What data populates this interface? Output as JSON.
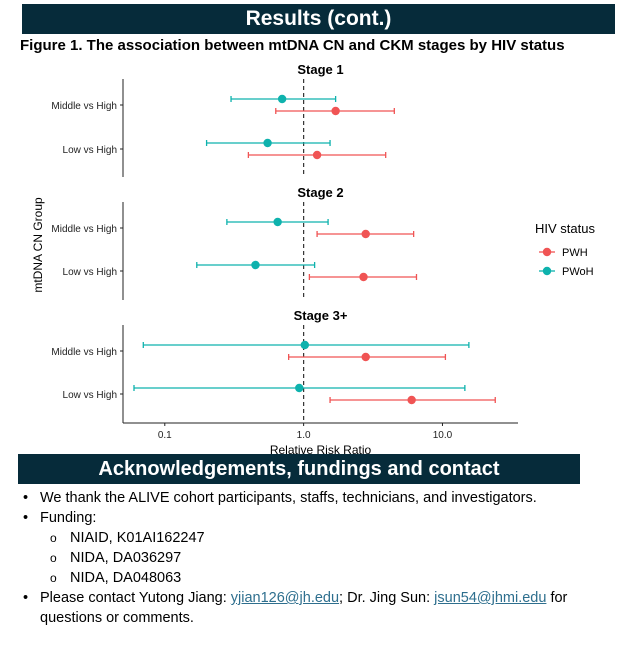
{
  "header": {
    "results_title": "Results (cont.)",
    "ack_title": "Acknowledgements, fundings and contact"
  },
  "figure_title": "Figure 1. The association between mtDNA CN and CKM stages by HIV status",
  "chart_data": {
    "type": "forest",
    "xscale": "log",
    "xlim": [
      0.05,
      35
    ],
    "xticks": [
      0.1,
      1.0,
      10.0
    ],
    "xtick_labels": [
      "0.1",
      "1.0",
      "10.0"
    ],
    "reference_line": 1.0,
    "xlabel": "Relative Risk Ratio",
    "ylabel": "mtDNA CN Group",
    "categories": [
      "Middle vs High",
      "Low vs High"
    ],
    "legend": {
      "title": "HIV status",
      "position": "right"
    },
    "series_colors": {
      "PWH": "#f05454",
      "PWoH": "#0eb2ad"
    },
    "series_names": [
      "PWH",
      "PWoH"
    ],
    "panels": [
      {
        "title": "Stage 1",
        "rows": [
          {
            "category": "Middle vs High",
            "PWoH": {
              "est": 0.7,
              "lo": 0.3,
              "hi": 1.7
            },
            "PWH": {
              "est": 1.7,
              "lo": 0.63,
              "hi": 4.5
            }
          },
          {
            "category": "Low vs High",
            "PWoH": {
              "est": 0.55,
              "lo": 0.2,
              "hi": 1.55
            },
            "PWH": {
              "est": 1.25,
              "lo": 0.4,
              "hi": 3.9
            }
          }
        ]
      },
      {
        "title": "Stage 2",
        "rows": [
          {
            "category": "Middle vs High",
            "PWoH": {
              "est": 0.65,
              "lo": 0.28,
              "hi": 1.5
            },
            "PWH": {
              "est": 2.8,
              "lo": 1.25,
              "hi": 6.2
            }
          },
          {
            "category": "Low vs High",
            "PWoH": {
              "est": 0.45,
              "lo": 0.17,
              "hi": 1.2
            },
            "PWH": {
              "est": 2.7,
              "lo": 1.1,
              "hi": 6.5
            }
          }
        ]
      },
      {
        "title": "Stage 3+",
        "rows": [
          {
            "category": "Middle vs High",
            "PWoH": {
              "est": 1.02,
              "lo": 0.07,
              "hi": 15.5
            },
            "PWH": {
              "est": 2.8,
              "lo": 0.78,
              "hi": 10.5
            }
          },
          {
            "category": "Low vs High",
            "PWoH": {
              "est": 0.93,
              "lo": 0.06,
              "hi": 14.5
            },
            "PWH": {
              "est": 6.0,
              "lo": 1.55,
              "hi": 24
            }
          }
        ]
      }
    ]
  },
  "acknowledgements": {
    "thanks": "We thank the ALIVE cohort participants, staffs, technicians, and investigators.",
    "funding_label": "Funding:",
    "funding": [
      "NIAID, K01AI162247",
      "NIDA, DA036297",
      "NIDA, DA048063"
    ],
    "contact_pre": "Please contact Yutong Jiang: ",
    "email1": "yjian126@jh.edu",
    "contact_mid": "; Dr. Jing Sun: ",
    "email2": "jsun54@jhmi.edu",
    "contact_post": " for questions or comments.",
    "bullet": "•",
    "sub_bullet": "o"
  }
}
